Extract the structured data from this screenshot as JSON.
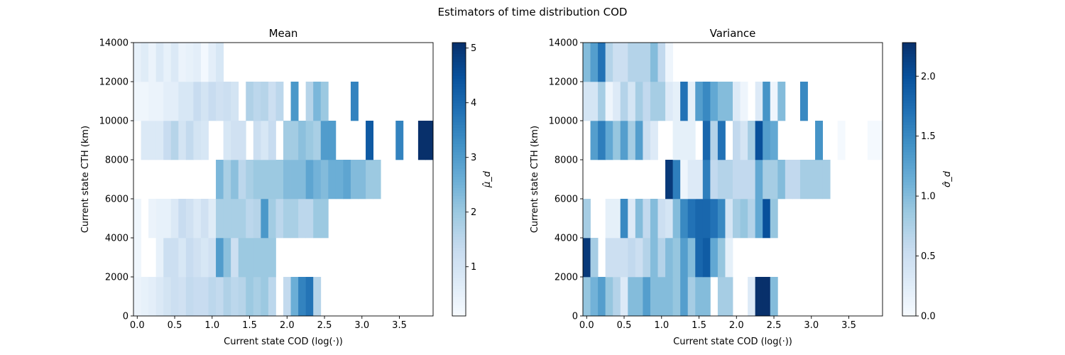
{
  "figure": {
    "suptitle": "Estimators of time distribution COD"
  },
  "chart_data": [
    {
      "type": "heatmap",
      "title": "Mean",
      "xlabel": "Current state COD (log(·))",
      "ylabel": "Current state CTH (km)",
      "xlim": [
        -0.05,
        3.95
      ],
      "ylim": [
        0,
        14000
      ],
      "x_bin_edges": [
        -0.05,
        0.05,
        0.15,
        0.25,
        0.35,
        0.45,
        0.55,
        0.65,
        0.75,
        0.85,
        0.95,
        1.05,
        1.15,
        1.25,
        1.35,
        1.45,
        1.55,
        1.65,
        1.75,
        1.85,
        1.95,
        2.05,
        2.15,
        2.25,
        2.35,
        2.45,
        2.55,
        2.65,
        2.75,
        2.85,
        2.95,
        3.05,
        3.15,
        3.25,
        3.35,
        3.45,
        3.55,
        3.65,
        3.75,
        3.85,
        3.95
      ],
      "y_bin_edges": [
        0,
        2000,
        4000,
        6000,
        8000,
        10000,
        12000,
        14000
      ],
      "xticks": [
        0.0,
        0.5,
        1.0,
        1.5,
        2.0,
        2.5,
        3.0,
        3.5
      ],
      "xtick_labels": [
        "0.0",
        "0.5",
        "1.0",
        "1.5",
        "2.0",
        "2.5",
        "3.0",
        "3.5"
      ],
      "yticks": [
        0,
        2000,
        4000,
        6000,
        8000,
        10000,
        12000,
        14000
      ],
      "ytick_labels": [
        "0",
        "2000",
        "4000",
        "6000",
        "8000",
        "10000",
        "12000",
        "14000"
      ],
      "colormap": "Blues",
      "vmin": 0.1,
      "vmax": 5.1,
      "colorbar": {
        "label": "μ̂_d",
        "ticks": [
          1,
          2,
          3,
          4,
          5
        ],
        "tick_labels": [
          "1",
          "2",
          "3",
          "4",
          "5"
        ]
      },
      "values": [
        [
          0.4,
          0.5,
          0.6,
          0.8,
          1.0,
          1.2,
          1.1,
          1.4,
          1.3,
          1.3,
          1.5,
          1.4,
          1.7,
          1.5,
          1.6,
          2.0,
          1.8,
          2.0,
          1.5,
          null,
          1.4,
          2.6,
          3.5,
          3.8,
          1.6,
          null,
          null,
          null,
          null,
          null,
          null,
          null,
          null,
          null,
          null,
          null,
          null,
          null,
          null,
          null
        ],
        [
          0.3,
          null,
          null,
          0.5,
          1.2,
          1.2,
          0.9,
          1.3,
          1.1,
          0.9,
          1.1,
          3.0,
          2.2,
          1.2,
          2.0,
          2.0,
          2.0,
          2.0,
          2.0,
          null,
          null,
          null,
          null,
          null,
          null,
          null,
          null,
          null,
          null,
          null,
          null,
          null,
          null,
          null,
          null,
          null,
          null,
          null,
          null,
          null
        ],
        [
          0.3,
          null,
          0.4,
          0.5,
          0.5,
          0.8,
          1.3,
          1.1,
          0.8,
          1.1,
          0.7,
          1.8,
          1.8,
          1.8,
          1.8,
          1.5,
          1.6,
          3.1,
          1.9,
          1.5,
          1.8,
          1.8,
          1.5,
          1.5,
          2.0,
          2.0,
          null,
          null,
          null,
          null,
          null,
          null,
          null,
          null,
          null,
          null,
          null,
          null,
          null,
          null
        ],
        [
          null,
          null,
          null,
          null,
          null,
          null,
          null,
          null,
          null,
          null,
          null,
          2.4,
          1.8,
          2.2,
          1.5,
          1.8,
          2.0,
          2.0,
          2.0,
          2.0,
          2.3,
          2.3,
          2.3,
          2.8,
          2.5,
          2.3,
          2.6,
          2.6,
          2.8,
          2.3,
          2.3,
          2.0,
          2.0,
          null,
          null,
          null,
          null,
          null,
          null,
          null
        ],
        [
          null,
          0.8,
          0.8,
          0.8,
          1.3,
          1.6,
          1.0,
          1.4,
          1.0,
          0.9,
          null,
          null,
          0.9,
          1.1,
          1.1,
          null,
          1.2,
          0.9,
          1.3,
          null,
          1.9,
          1.9,
          2.2,
          2.0,
          1.8,
          3.0,
          3.0,
          null,
          null,
          null,
          null,
          4.3,
          null,
          null,
          null,
          3.5,
          null,
          null,
          5.1,
          5.1
        ],
        [
          0.3,
          0.3,
          0.4,
          0.4,
          0.6,
          0.6,
          0.9,
          0.9,
          1.3,
          1.0,
          1.3,
          1.1,
          1.2,
          1.0,
          null,
          1.7,
          1.5,
          1.6,
          1.2,
          1.5,
          null,
          3.1,
          null,
          1.6,
          2.4,
          2.0,
          null,
          null,
          null,
          3.5,
          null,
          null,
          null,
          null,
          null,
          null,
          null,
          null,
          null,
          null
        ],
        [
          0.5,
          0.7,
          0.4,
          0.8,
          0.5,
          0.8,
          0.4,
          0.5,
          0.6,
          0.2,
          0.6,
          0.9,
          null,
          null,
          null,
          null,
          null,
          null,
          null,
          null,
          null,
          null,
          null,
          null,
          null,
          null,
          null,
          null,
          null,
          null,
          null,
          null,
          null,
          null,
          null,
          null,
          null,
          null,
          null,
          null
        ]
      ]
    },
    {
      "type": "heatmap",
      "title": "Variance",
      "xlabel": "Current state COD (log(·))",
      "ylabel": "Current state CTH (km)",
      "xlim": [
        -0.05,
        3.95
      ],
      "ylim": [
        0,
        14000
      ],
      "x_bin_edges": [
        -0.05,
        0.05,
        0.15,
        0.25,
        0.35,
        0.45,
        0.55,
        0.65,
        0.75,
        0.85,
        0.95,
        1.05,
        1.15,
        1.25,
        1.35,
        1.45,
        1.55,
        1.65,
        1.75,
        1.85,
        1.95,
        2.05,
        2.15,
        2.25,
        2.35,
        2.45,
        2.55,
        2.65,
        2.75,
        2.85,
        2.95,
        3.05,
        3.15,
        3.25,
        3.35,
        3.45,
        3.55,
        3.65,
        3.75,
        3.85,
        3.95
      ],
      "y_bin_edges": [
        0,
        2000,
        4000,
        6000,
        8000,
        10000,
        12000,
        14000
      ],
      "xticks": [
        0.0,
        0.5,
        1.0,
        1.5,
        2.0,
        2.5,
        3.0,
        3.5
      ],
      "xtick_labels": [
        "0.0",
        "0.5",
        "1.0",
        "1.5",
        "2.0",
        "2.5",
        "3.0",
        "3.5"
      ],
      "yticks": [
        0,
        2000,
        4000,
        6000,
        8000,
        10000,
        12000,
        14000
      ],
      "ytick_labels": [
        "0",
        "2000",
        "4000",
        "6000",
        "8000",
        "10000",
        "12000",
        "14000"
      ],
      "colormap": "Blues",
      "vmin": 0.0,
      "vmax": 2.28,
      "colorbar": {
        "label": "σ̂_d",
        "ticks": [
          0.0,
          0.5,
          1.0,
          1.5,
          2.0
        ],
        "tick_labels": [
          "0.0",
          "0.5",
          "1.0",
          "1.5",
          "2.0"
        ]
      },
      "values": [
        [
          0.9,
          1.1,
          1.3,
          0.9,
          0.7,
          0.3,
          1.0,
          1.0,
          1.3,
          1.0,
          1.0,
          1.0,
          0.9,
          1.3,
          0.8,
          1.0,
          1.0,
          null,
          0.8,
          0.8,
          null,
          null,
          0.3,
          2.3,
          2.3,
          1.0,
          null,
          null,
          null,
          null,
          null,
          null,
          null,
          null,
          null,
          null,
          null,
          null,
          null,
          null
        ],
        [
          2.2,
          0.8,
          null,
          0.5,
          0.5,
          0.5,
          0.6,
          0.5,
          0.7,
          1.0,
          0.7,
          1.0,
          0.9,
          1.3,
          1.0,
          1.8,
          1.9,
          1.2,
          0.9,
          0.2,
          null,
          null,
          null,
          null,
          null,
          null,
          null,
          null,
          null,
          null,
          null,
          null,
          null,
          null,
          null,
          null,
          null,
          null,
          null,
          null
        ],
        [
          0.8,
          null,
          null,
          0.2,
          0.2,
          1.5,
          0.3,
          1.0,
          0.6,
          1.0,
          0.5,
          0.4,
          1.0,
          1.5,
          1.7,
          1.8,
          1.8,
          1.7,
          1.5,
          0.4,
          0.8,
          0.9,
          0.7,
          1.2,
          2.0,
          0.9,
          null,
          null,
          null,
          null,
          null,
          null,
          null,
          null,
          null,
          null,
          null,
          null,
          null,
          null
        ],
        [
          null,
          null,
          null,
          null,
          null,
          null,
          null,
          null,
          null,
          null,
          null,
          2.2,
          1.6,
          0.1,
          0.3,
          0.3,
          1.6,
          0.6,
          0.7,
          0.7,
          0.6,
          0.6,
          0.6,
          1.2,
          0.8,
          0.8,
          1.0,
          0.6,
          0.6,
          0.8,
          0.8,
          0.8,
          0.8,
          null,
          null,
          null,
          null,
          null,
          null,
          null
        ],
        [
          null,
          1.3,
          1.6,
          1.2,
          0.9,
          1.3,
          0.8,
          1.3,
          0.5,
          0.3,
          null,
          null,
          0.2,
          0.2,
          0.2,
          null,
          1.8,
          0.7,
          1.7,
          null,
          0.6,
          0.4,
          0.8,
          2.0,
          1.3,
          1.2,
          null,
          null,
          null,
          null,
          null,
          1.4,
          null,
          null,
          0.03,
          null,
          null,
          null,
          0.03,
          0.03
        ],
        [
          0.4,
          0.4,
          0.8,
          0.1,
          0.3,
          0.7,
          0.4,
          0.8,
          0.6,
          0.8,
          0.8,
          0.3,
          0.2,
          1.7,
          0.2,
          1.3,
          1.5,
          1.2,
          1.0,
          1.0,
          0.3,
          0.1,
          null,
          0.3,
          1.4,
          0.1,
          1.0,
          null,
          null,
          1.5,
          null,
          null,
          null,
          null,
          null,
          null,
          null,
          null,
          null,
          null
        ],
        [
          1.0,
          1.3,
          1.7,
          0.7,
          0.5,
          0.5,
          0.7,
          0.7,
          0.7,
          1.0,
          0.6,
          0.1,
          null,
          null,
          null,
          null,
          null,
          null,
          null,
          null,
          null,
          null,
          null,
          null,
          null,
          null,
          null,
          null,
          null,
          null,
          null,
          null,
          null,
          null,
          null,
          null,
          null,
          null,
          null,
          null
        ]
      ]
    }
  ]
}
